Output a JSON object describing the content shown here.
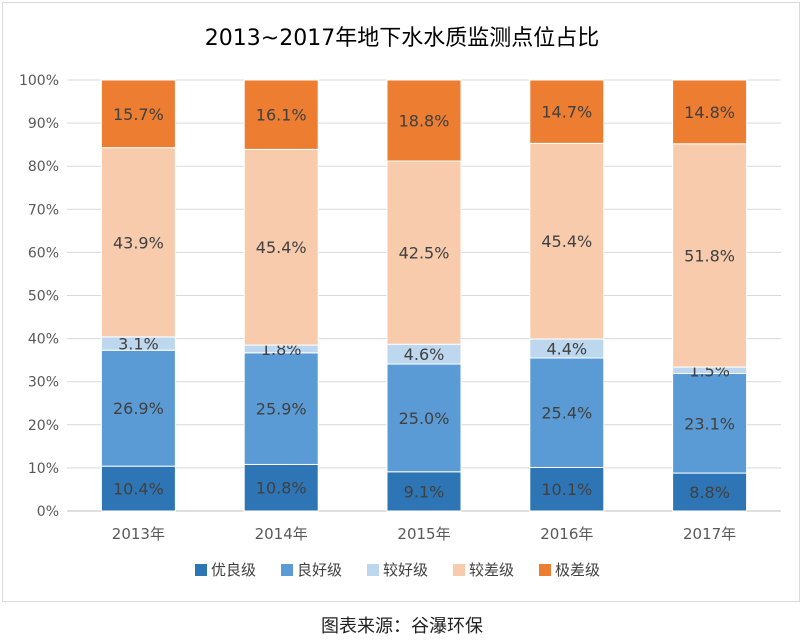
{
  "chart_data": {
    "type": "bar",
    "stacked": true,
    "title": "2013~2017年地下水水质监测点位占比",
    "xlabel": "",
    "ylabel": "",
    "ylim": [
      0,
      100
    ],
    "yticks": [
      "0%",
      "10%",
      "20%",
      "30%",
      "40%",
      "50%",
      "60%",
      "70%",
      "80%",
      "90%",
      "100%"
    ],
    "categories": [
      "2013年",
      "2014年",
      "2015年",
      "2016年",
      "2017年"
    ],
    "legend_position": "bottom",
    "grid": true,
    "series": [
      {
        "name": "优良级",
        "color": "#2e75b6",
        "values": [
          10.4,
          10.8,
          9.1,
          10.1,
          8.8
        ],
        "labels": [
          "10.4%",
          "10.8%",
          "9.1%",
          "10.1%",
          "8.8%"
        ]
      },
      {
        "name": "良好级",
        "color": "#5b9bd5",
        "values": [
          26.9,
          25.9,
          25.0,
          25.4,
          23.1
        ],
        "labels": [
          "26.9%",
          "25.9%",
          "25.0%",
          "25.4%",
          "23.1%"
        ]
      },
      {
        "name": "较好级",
        "color": "#bdd7ee",
        "values": [
          3.1,
          1.8,
          4.6,
          4.4,
          1.5
        ],
        "labels": [
          "3.1%",
          "1.8%",
          "4.6%",
          "4.4%",
          "1.5%"
        ]
      },
      {
        "name": "较差级",
        "color": "#f8cbad",
        "values": [
          43.9,
          45.4,
          42.5,
          45.4,
          51.8
        ],
        "labels": [
          "43.9%",
          "45.4%",
          "42.5%",
          "45.4%",
          "51.8%"
        ]
      },
      {
        "name": "极差级",
        "color": "#ed7d31",
        "values": [
          15.7,
          16.1,
          18.8,
          14.7,
          14.8
        ],
        "labels": [
          "15.7%",
          "16.1%",
          "18.8%",
          "14.7%",
          "14.8%"
        ]
      }
    ]
  },
  "source_text": "图表来源：谷瀑环保"
}
